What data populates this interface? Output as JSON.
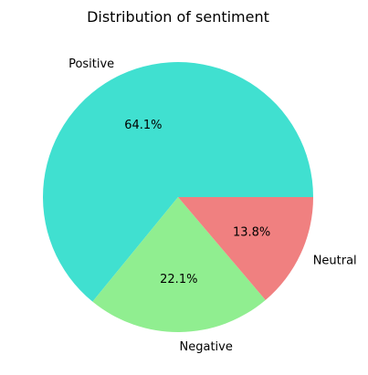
{
  "chart_data": {
    "type": "pie",
    "title": "Distribution of sentiment",
    "slices": [
      {
        "label": "Positive",
        "value": 64.1,
        "pct_label": "64.1%",
        "color": "#40e0d0"
      },
      {
        "label": "Negative",
        "value": 22.1,
        "pct_label": "22.1%",
        "color": "#90ee90"
      },
      {
        "label": "Neutral",
        "value": 13.8,
        "pct_label": "13.8%",
        "color": "#f08080"
      }
    ]
  }
}
